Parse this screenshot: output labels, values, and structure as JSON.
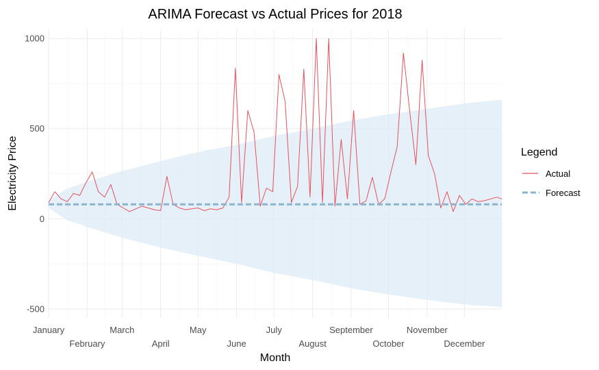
{
  "chart_data": {
    "type": "line",
    "title": "ARIMA Forecast vs Actual Prices for 2018",
    "xlabel": "Month",
    "ylabel": "Electricity Price",
    "ylim": [
      -550,
      1050
    ],
    "y_ticks": [
      -500,
      0,
      500,
      1000
    ],
    "x_ticks": [
      {
        "label": "January",
        "date": "2018-01-01"
      },
      {
        "label": "February",
        "date": "2018-02-01"
      },
      {
        "label": "March",
        "date": "2018-03-01"
      },
      {
        "label": "April",
        "date": "2018-04-01"
      },
      {
        "label": "May",
        "date": "2018-05-01"
      },
      {
        "label": "June",
        "date": "2018-06-01"
      },
      {
        "label": "July",
        "date": "2018-07-01"
      },
      {
        "label": "August",
        "date": "2018-08-01"
      },
      {
        "label": "September",
        "date": "2018-09-01"
      },
      {
        "label": "October",
        "date": "2018-10-01"
      },
      {
        "label": "November",
        "date": "2018-11-01"
      },
      {
        "label": "December",
        "date": "2018-12-01"
      }
    ],
    "xlim": [
      "2018-01-01",
      "2018-12-31"
    ],
    "grid": true,
    "legend": {
      "title": "Legend",
      "position": "right",
      "entries": [
        {
          "label": "Actual",
          "color": "#e8505b",
          "style": "solid"
        },
        {
          "label": "Forecast",
          "color": "#8ab4d0",
          "style": "dashed"
        }
      ]
    },
    "series": [
      {
        "name": "Actual",
        "color": "#e8505b",
        "dates": [
          "2018-01-01",
          "2018-01-06",
          "2018-01-11",
          "2018-01-16",
          "2018-01-21",
          "2018-01-26",
          "2018-01-31",
          "2018-02-05",
          "2018-02-10",
          "2018-02-15",
          "2018-02-20",
          "2018-02-25",
          "2018-03-02",
          "2018-03-07",
          "2018-03-12",
          "2018-03-17",
          "2018-03-22",
          "2018-03-27",
          "2018-04-01",
          "2018-04-06",
          "2018-04-11",
          "2018-04-16",
          "2018-04-21",
          "2018-04-26",
          "2018-05-01",
          "2018-05-06",
          "2018-05-11",
          "2018-05-16",
          "2018-05-21",
          "2018-05-26",
          "2018-05-31",
          "2018-06-05",
          "2018-06-10",
          "2018-06-15",
          "2018-06-20",
          "2018-06-25",
          "2018-06-30",
          "2018-07-05",
          "2018-07-10",
          "2018-07-15",
          "2018-07-20",
          "2018-07-25",
          "2018-07-30",
          "2018-08-04",
          "2018-08-09",
          "2018-08-14",
          "2018-08-19",
          "2018-08-24",
          "2018-08-29",
          "2018-09-03",
          "2018-09-08",
          "2018-09-13",
          "2018-09-18",
          "2018-09-23",
          "2018-09-28",
          "2018-10-03",
          "2018-10-08",
          "2018-10-13",
          "2018-10-18",
          "2018-10-23",
          "2018-10-28",
          "2018-11-02",
          "2018-11-07",
          "2018-11-12",
          "2018-11-17",
          "2018-11-22",
          "2018-11-27",
          "2018-12-02",
          "2018-12-07",
          "2018-12-12",
          "2018-12-17",
          "2018-12-22",
          "2018-12-27",
          "2018-12-31"
        ],
        "values": [
          90,
          150,
          110,
          95,
          140,
          130,
          200,
          260,
          150,
          120,
          190,
          80,
          60,
          40,
          55,
          70,
          60,
          50,
          45,
          235,
          80,
          60,
          50,
          55,
          60,
          45,
          55,
          50,
          60,
          120,
          835,
          90,
          600,
          480,
          70,
          170,
          150,
          800,
          650,
          90,
          180,
          830,
          120,
          1000,
          90,
          1000,
          70,
          440,
          110,
          600,
          80,
          100,
          230,
          80,
          110,
          260,
          400,
          920,
          600,
          300,
          880,
          350,
          250,
          60,
          150,
          40,
          130,
          80,
          110,
          95,
          100,
          110,
          120,
          110
        ]
      },
      {
        "name": "Forecast",
        "color": "#8ab4d0",
        "dates": [
          "2018-01-01",
          "2018-12-31"
        ],
        "values": [
          80,
          80
        ]
      }
    ],
    "confidence_band": {
      "color": "#deebf7",
      "dates": [
        "2018-01-01",
        "2018-01-15",
        "2018-02-01",
        "2018-03-01",
        "2018-04-01",
        "2018-05-01",
        "2018-06-01",
        "2018-07-01",
        "2018-08-01",
        "2018-09-01",
        "2018-10-01",
        "2018-11-01",
        "2018-12-01",
        "2018-12-31"
      ],
      "upper": [
        100,
        165,
        205,
        265,
        320,
        370,
        410,
        460,
        500,
        545,
        580,
        610,
        640,
        660
      ],
      "lower": [
        60,
        -5,
        -45,
        -105,
        -160,
        -205,
        -250,
        -300,
        -340,
        -385,
        -420,
        -450,
        -475,
        -490
      ]
    }
  }
}
